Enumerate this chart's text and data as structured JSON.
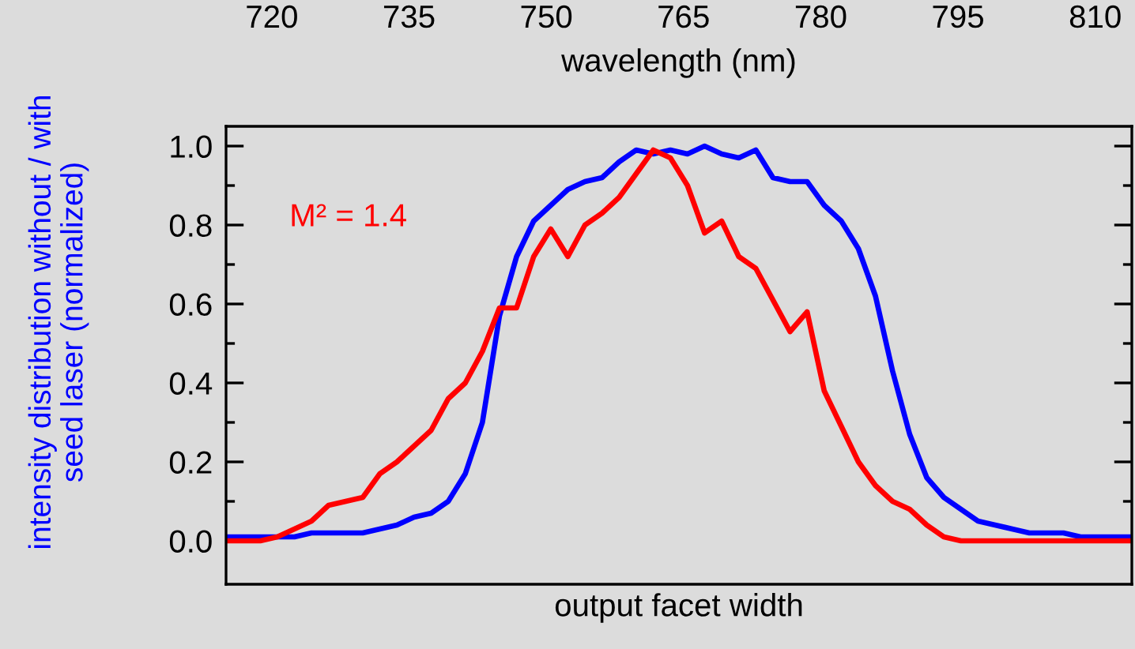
{
  "chart_data": [
    {
      "type": "line",
      "x2label": "wavelength (nm)",
      "x2lim": [
        715,
        814
      ],
      "x2ticks": [
        720,
        735,
        750,
        765,
        780,
        795,
        810
      ],
      "xlabel": "output facet width",
      "ylabel": "intensity distribution without / with\nseed laser (normalized)",
      "categories": [
        null,
        null,
        null,
        null,
        null,
        null,
        null,
        null,
        null,
        null,
        null,
        null,
        null,
        null,
        null,
        null,
        null,
        null,
        null,
        null,
        null,
        null,
        null,
        null,
        null,
        null,
        null,
        null,
        null,
        null,
        null,
        null,
        null,
        null,
        null,
        null,
        null,
        null,
        null,
        null,
        null,
        null,
        null,
        null,
        null,
        null,
        null,
        null,
        null,
        null,
        null,
        null,
        null,
        null
      ],
      "ylim": [
        -0.11,
        1.05
      ],
      "yticks": [
        {
          "value": 0.0,
          "label": "0.0"
        },
        {
          "value": 0.1,
          "label": null
        },
        {
          "value": 0.2,
          "label": "0.2"
        },
        {
          "value": 0.3,
          "label": null
        },
        {
          "value": 0.4,
          "label": "0.4"
        },
        {
          "value": 0.5,
          "label": null
        },
        {
          "value": 0.6,
          "label": "0.6"
        },
        {
          "value": 0.7,
          "label": null
        },
        {
          "value": 0.8,
          "label": "0.8"
        },
        {
          "value": 0.9,
          "label": null
        },
        {
          "value": 1.0,
          "label": "1.0"
        }
      ],
      "tick_labels": "y",
      "grid": false,
      "legend": false,
      "marker": "none",
      "line_style": "solid",
      "annotations": [
        "M² = 1.4"
      ],
      "series": [
        {
          "color": "#0000ff",
          "values": [
            0.01,
            0.01,
            0.01,
            0.01,
            0.01,
            0.02,
            0.02,
            0.02,
            0.02,
            0.03,
            0.04,
            0.06,
            0.07,
            0.1,
            0.17,
            0.3,
            0.57,
            0.72,
            0.81,
            0.85,
            0.89,
            0.91,
            0.92,
            0.96,
            0.99,
            0.98,
            0.99,
            0.98,
            1.0,
            0.98,
            0.97,
            0.99,
            0.92,
            0.91,
            0.91,
            0.85,
            0.81,
            0.74,
            0.62,
            0.43,
            0.27,
            0.16,
            0.11,
            0.08,
            0.05,
            0.04,
            0.03,
            0.02,
            0.02,
            0.02,
            0.01,
            0.01,
            0.01,
            0.01
          ]
        },
        {
          "color": "#ff0000",
          "values": [
            0.0,
            0.0,
            0.0,
            0.01,
            0.03,
            0.05,
            0.09,
            0.1,
            0.11,
            0.17,
            0.2,
            0.24,
            0.28,
            0.36,
            0.4,
            0.48,
            0.59,
            0.59,
            0.72,
            0.79,
            0.72,
            0.8,
            0.83,
            0.87,
            0.93,
            0.99,
            0.97,
            0.9,
            0.78,
            0.81,
            0.72,
            0.69,
            0.61,
            0.53,
            0.58,
            0.38,
            0.29,
            0.2,
            0.14,
            0.1,
            0.08,
            0.04,
            0.01,
            0.0,
            0.0,
            0.0,
            0.0,
            0.0,
            0.0,
            0.0,
            0.0,
            0.0,
            0.0,
            0.0
          ]
        }
      ]
    }
  ]
}
